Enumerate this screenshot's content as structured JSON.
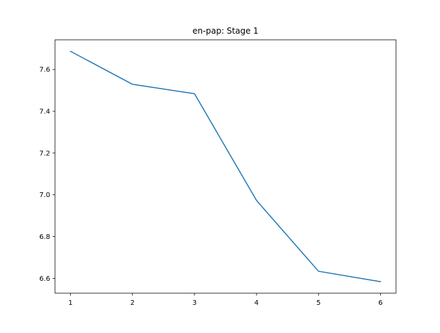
{
  "chart_data": {
    "type": "line",
    "title": "en-pap: Stage 1",
    "xlabel": "",
    "ylabel": "",
    "x": [
      1,
      2,
      3,
      4,
      5,
      6
    ],
    "series": [
      {
        "values": [
          7.687,
          7.529,
          7.484,
          6.973,
          6.634,
          6.584
        ]
      }
    ],
    "xlim": [
      0.75,
      6.25
    ],
    "ylim": [
      6.529,
      7.742
    ],
    "xticks": [
      1,
      2,
      3,
      4,
      5,
      6
    ],
    "yticks": [
      6.6,
      6.8,
      7.0,
      7.2,
      7.4,
      7.6
    ],
    "ytick_labels": [
      "6.6",
      "6.8",
      "7.0",
      "7.2",
      "7.4",
      "7.6"
    ],
    "grid": false,
    "legend": "none",
    "colors": {
      "line": "#1f77b4",
      "axes": "#000000",
      "background": "#ffffff"
    }
  }
}
